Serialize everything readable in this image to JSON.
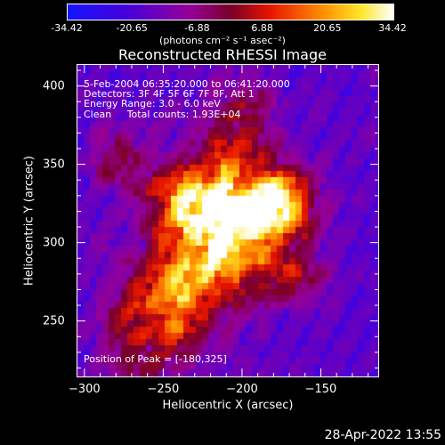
{
  "chart_data": {
    "type": "heatmap",
    "title": "Reconstructed RHESSI Image",
    "xlabel": "Heliocentric X (arcsec)",
    "ylabel": "Heliocentric Y (arcsec)",
    "xlim": [
      -305,
      -113
    ],
    "ylim": [
      214,
      414
    ],
    "x_ticks": [
      -300,
      -250,
      -200,
      -150
    ],
    "y_ticks": [
      250,
      300,
      350,
      400
    ],
    "colorbar": {
      "ticks": [
        "-34.42",
        "-20.65",
        "-6.88",
        "6.88",
        "20.65",
        "34.42"
      ],
      "range": [
        -34.42,
        34.42
      ],
      "units_label": "(photons cm⁻² s⁻¹ asec⁻²)"
    },
    "annotations": {
      "time": "5-Feb-2004 06:35:20.000 to 06:41:20.000",
      "detectors": "Detectors: 3F 4F 5F 6F 7F 8F, Att 1",
      "energy": "Energy Range: 3.0 - 6.0 keV",
      "method": "Clean     Total counts: 1.93E+04",
      "peak": "Position of Peak = [-180,325]"
    },
    "peak_position": [
      -180,
      325
    ]
  },
  "timestamp": "28-Apr-2022 13:55",
  "colors": {
    "background": "#000000",
    "axes": "#ffffff"
  }
}
